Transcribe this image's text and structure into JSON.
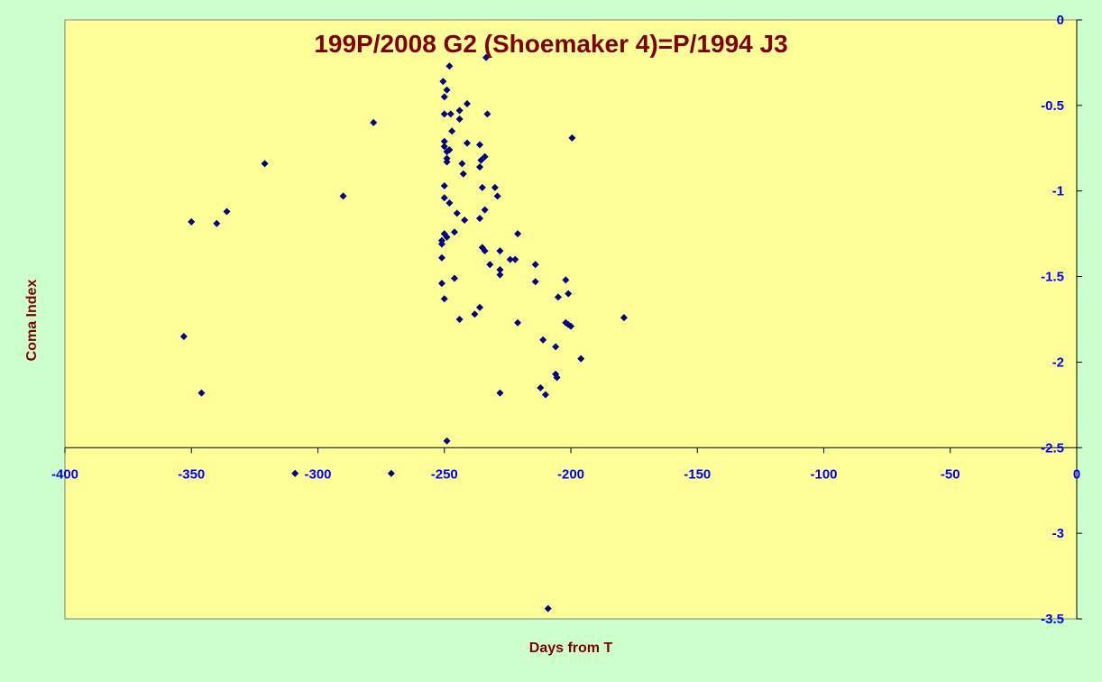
{
  "colors": {
    "background": "#ccffcc",
    "plot_area": "#ffff99",
    "marker": "#000080",
    "title": "#800000",
    "axis_label": "#800000",
    "tick_label": "#0000ff",
    "axis_line": "#000000"
  },
  "chart_data": {
    "type": "scatter",
    "title": "199P/2008 G2 (Shoemaker 4)=P/1994 J3",
    "xlabel": "Days from T",
    "ylabel": "Coma Index",
    "xlim": [
      -400,
      0
    ],
    "ylim": [
      -3.5,
      0
    ],
    "x_ticks": [
      -400,
      -350,
      -300,
      -250,
      -200,
      -150,
      -100,
      -50,
      0
    ],
    "x_tick_labels": [
      "-400",
      "-350",
      "-300",
      "-250",
      "-200",
      "-150",
      "-100",
      "-50",
      "0"
    ],
    "y_ticks": [
      0,
      -0.5,
      -1,
      -1.5,
      -2,
      -2.5,
      -3,
      -3.5
    ],
    "y_tick_labels": [
      "0",
      "-0.5",
      "-1",
      "-1.5",
      "-2",
      "-2.5",
      "-3",
      "-3.5"
    ],
    "x_axis_crosses_y": -2.5,
    "y_axis_position": "right",
    "grid": false,
    "legend": "none",
    "marker": "diamond",
    "series": [
      {
        "points": [
          [
            -353,
            -1.85
          ],
          [
            -350,
            -1.18
          ],
          [
            -346,
            -2.18
          ],
          [
            -340,
            -1.19
          ],
          [
            -336,
            -1.12
          ],
          [
            -321,
            -0.84
          ],
          [
            -309,
            -2.65
          ],
          [
            -290,
            -1.03
          ],
          [
            -278,
            -0.6
          ],
          [
            -271,
            -2.65
          ],
          [
            -250.5,
            -0.36
          ],
          [
            -250,
            -0.71
          ],
          [
            -251,
            -1.31
          ],
          [
            -251,
            -1.29
          ],
          [
            -251,
            -1.39
          ],
          [
            -251,
            -1.54
          ],
          [
            -250,
            -0.45
          ],
          [
            -250,
            -0.55
          ],
          [
            -250,
            -0.74
          ],
          [
            -250,
            -0.97
          ],
          [
            -250,
            -1.04
          ],
          [
            -250,
            -1.25
          ],
          [
            -250,
            -1.63
          ],
          [
            -249,
            -0.41
          ],
          [
            -249,
            -0.77
          ],
          [
            -249,
            -0.81
          ],
          [
            -249,
            -0.83
          ],
          [
            -249,
            -1.27
          ],
          [
            -249,
            -2.46
          ],
          [
            -248,
            -0.27
          ],
          [
            -248,
            -0.76
          ],
          [
            -248,
            -1.07
          ],
          [
            -247.5,
            -0.55
          ],
          [
            -247,
            -0.65
          ],
          [
            -246,
            -1.24
          ],
          [
            -246,
            -1.51
          ],
          [
            -245,
            -1.13
          ],
          [
            -244,
            -0.53
          ],
          [
            -244,
            -0.58
          ],
          [
            -244,
            -1.75
          ],
          [
            -243,
            -0.84
          ],
          [
            -242.5,
            -0.9
          ],
          [
            -242,
            -1.17
          ],
          [
            -241,
            -0.49
          ],
          [
            -241,
            -0.72
          ],
          [
            -238,
            -1.72
          ],
          [
            -236,
            -0.73
          ],
          [
            -236,
            -0.86
          ],
          [
            -236,
            -1.16
          ],
          [
            -236,
            -1.68
          ],
          [
            -235.5,
            -0.82
          ],
          [
            -235,
            -0.98
          ],
          [
            -235,
            -1.33
          ],
          [
            -234,
            -0.8
          ],
          [
            -234,
            -1.11
          ],
          [
            -234,
            -1.35
          ],
          [
            -233.5,
            -0.22
          ],
          [
            -233,
            -0.55
          ],
          [
            -232,
            -1.43
          ],
          [
            -230,
            -0.98
          ],
          [
            -229,
            -1.03
          ],
          [
            -228,
            -1.35
          ],
          [
            -228,
            -1.46
          ],
          [
            -228,
            -1.49
          ],
          [
            -228,
            -2.18
          ],
          [
            -224,
            -1.4
          ],
          [
            -222,
            -1.4
          ],
          [
            -221,
            -1.25
          ],
          [
            -221,
            -1.77
          ],
          [
            -214,
            -1.43
          ],
          [
            -214,
            -1.53
          ],
          [
            -212,
            -2.15
          ],
          [
            -211,
            -1.87
          ],
          [
            -210,
            -2.19
          ],
          [
            -209,
            -3.44
          ],
          [
            -206,
            -1.91
          ],
          [
            -206,
            -2.07
          ],
          [
            -205.5,
            -2.09
          ],
          [
            -205,
            -1.62
          ],
          [
            -202,
            -1.52
          ],
          [
            -202,
            -1.77
          ],
          [
            -201,
            -1.6
          ],
          [
            -201,
            -1.78
          ],
          [
            -200,
            -1.79
          ],
          [
            -199.5,
            -0.69
          ],
          [
            -196,
            -1.98
          ],
          [
            -179,
            -1.74
          ]
        ]
      }
    ]
  }
}
